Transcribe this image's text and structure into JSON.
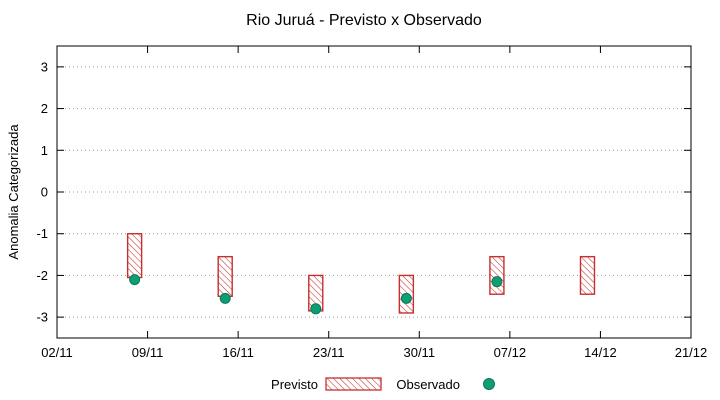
{
  "chart_data": {
    "type": "bar",
    "title": "Rio Juruá - Previsto x Observado",
    "ylabel": "Anomalia Categorizada",
    "xlabel": "",
    "ylim": [
      -3.5,
      3.5
    ],
    "yticks": [
      -3,
      -2,
      -1,
      0,
      1,
      2,
      3
    ],
    "x_axis": {
      "tick_labels": [
        "02/11",
        "09/11",
        "16/11",
        "23/11",
        "30/11",
        "07/12",
        "14/12",
        "21/12"
      ],
      "tick_days": [
        0,
        7,
        14,
        21,
        28,
        35,
        42,
        49
      ],
      "range_days": [
        0,
        49
      ]
    },
    "grid": "horizontal-dotted",
    "legend_position": "bottom-center",
    "series": [
      {
        "name": "Previsto",
        "type": "range-bar",
        "style": "hatched",
        "color": "#c62f2f",
        "points": [
          {
            "day": 6,
            "high": -1.0,
            "low": -2.05
          },
          {
            "day": 13,
            "high": -1.55,
            "low": -2.5
          },
          {
            "day": 20,
            "high": -2.0,
            "low": -2.85
          },
          {
            "day": 27,
            "high": -2.0,
            "low": -2.9
          },
          {
            "day": 34,
            "high": -1.55,
            "low": -2.45
          },
          {
            "day": 41,
            "high": -1.55,
            "low": -2.45
          }
        ]
      },
      {
        "name": "Observado",
        "type": "scatter",
        "style": "filled-circle",
        "color": "#0f9d74",
        "points": [
          {
            "day": 6,
            "value": -2.1
          },
          {
            "day": 13,
            "value": -2.55
          },
          {
            "day": 20,
            "value": -2.8
          },
          {
            "day": 27,
            "value": -2.55
          },
          {
            "day": 34,
            "value": -2.15
          }
        ]
      }
    ]
  }
}
